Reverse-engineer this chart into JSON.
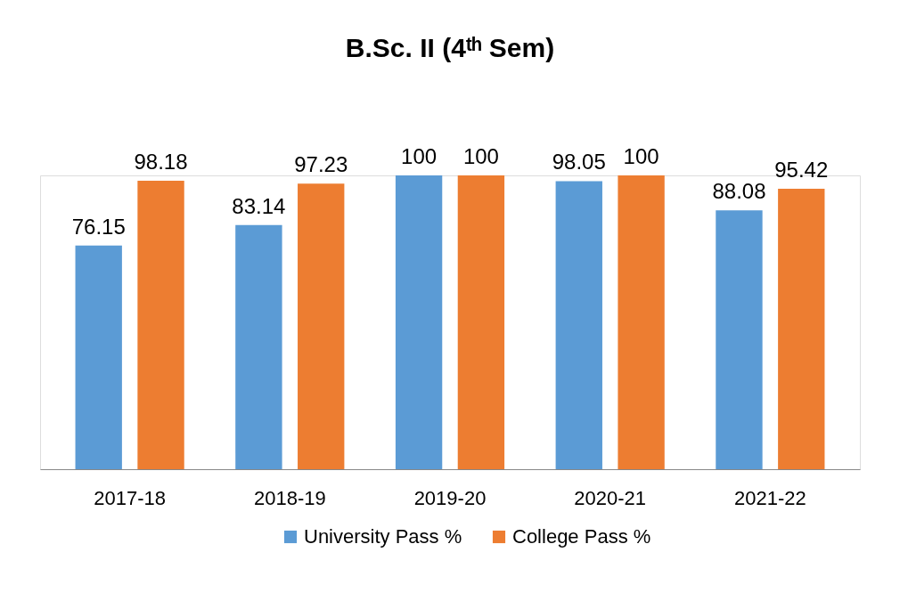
{
  "chart_data": {
    "type": "bar",
    "title": "B.Sc. II (4ᵗʰ Sem)",
    "categories": [
      "2017-18",
      "2018-19",
      "2019-20",
      "2020-21",
      "2021-22"
    ],
    "series": [
      {
        "name": "University Pass %",
        "color": "#5b9bd5",
        "values": [
          76.15,
          83.14,
          100,
          98.05,
          88.08
        ]
      },
      {
        "name": "College Pass %",
        "color": "#ed7d31",
        "values": [
          98.18,
          97.23,
          100,
          100,
          95.42
        ]
      }
    ],
    "data_labels": true,
    "grid": false,
    "legend": "bottom"
  }
}
